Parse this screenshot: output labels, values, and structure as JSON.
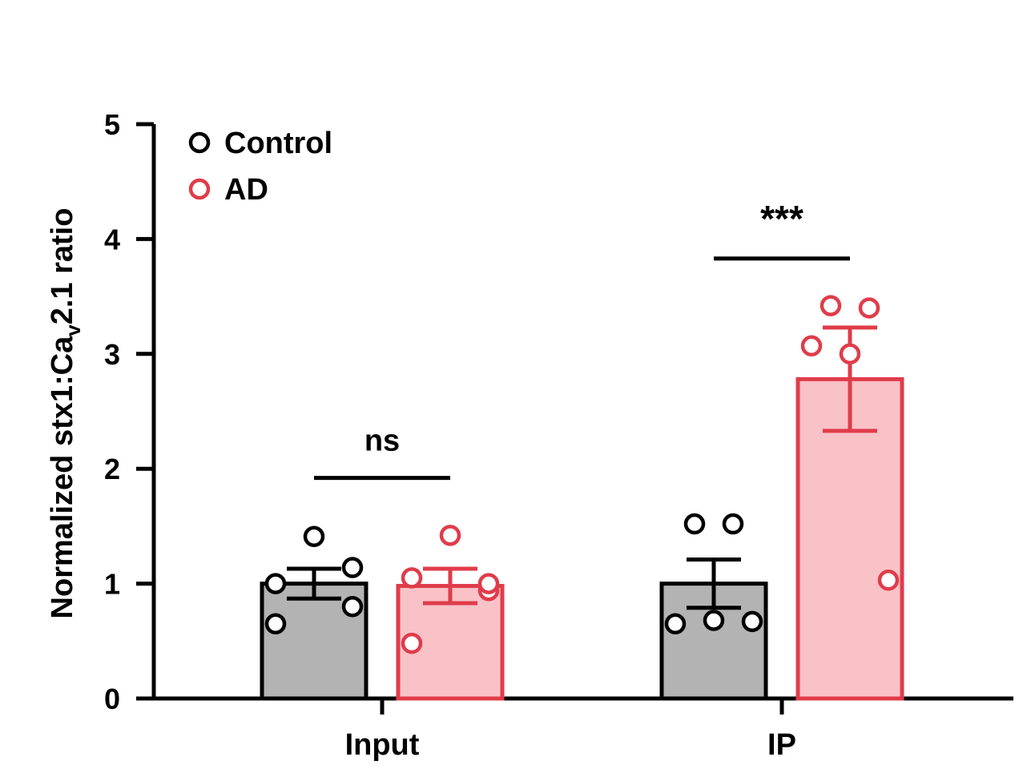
{
  "chart_data": {
    "type": "bar",
    "categories": [
      "Input",
      "IP"
    ],
    "ylabel_main": "Normalized stx1:Ca",
    "ylabel_sub": "v",
    "ylabel_tail": "2.1 ratio",
    "ylim": [
      0,
      5
    ],
    "yticks": [
      0,
      1,
      2,
      3,
      4,
      5
    ],
    "legend_position": "top-left",
    "series": [
      {
        "name": "Control",
        "stroke": "#000000",
        "fill": "#b3b3b3",
        "values": [
          1.0,
          1.0
        ],
        "sem": [
          0.13,
          0.21
        ],
        "points": [
          [
            1.41,
            1.0,
            1.14,
            0.8,
            0.65
          ],
          [
            1.52,
            1.52,
            0.65,
            0.68,
            0.67
          ]
        ]
      },
      {
        "name": "AD",
        "stroke": "#e03c4a",
        "fill": "#f9c2c7",
        "values": [
          0.98,
          2.78
        ],
        "sem": [
          0.15,
          0.45
        ],
        "points": [
          [
            1.42,
            1.05,
            0.94,
            1.0,
            0.48
          ],
          [
            3.42,
            3.4,
            3.07,
            3.0,
            1.03
          ]
        ]
      }
    ],
    "annotations": [
      {
        "label": "ns",
        "category_index": 0,
        "y": 1.92
      },
      {
        "label": "***",
        "category_index": 1,
        "y": 3.83
      }
    ]
  }
}
